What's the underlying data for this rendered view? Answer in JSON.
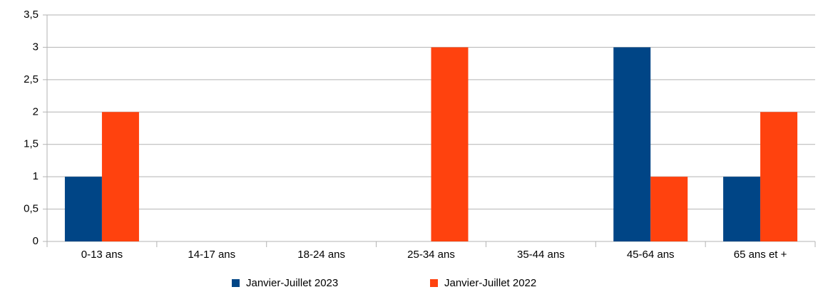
{
  "chart_data": {
    "type": "bar",
    "categories": [
      "0-13 ans",
      "14-17 ans",
      "18-24 ans",
      "25-34 ans",
      "35-44 ans",
      "45-64 ans",
      "65 ans et +"
    ],
    "series": [
      {
        "name": "Janvier-Juillet 2023",
        "color": "#004586",
        "values": [
          1,
          0,
          0,
          0,
          0,
          3,
          1
        ]
      },
      {
        "name": "Janvier-Juillet 2022",
        "color": "#ff420e",
        "values": [
          2,
          0,
          0,
          3,
          0,
          1,
          2
        ]
      }
    ],
    "ylim": [
      0,
      3.5
    ],
    "yticks": [
      0,
      {
        "value": 0.5,
        "label": "0,5"
      },
      1,
      {
        "value": 1.5,
        "label": "1,5"
      },
      2,
      {
        "value": 2.5,
        "label": "2,5"
      },
      3,
      {
        "value": 3.5,
        "label": "3,5"
      }
    ],
    "grid": true,
    "legend": "bottom"
  }
}
